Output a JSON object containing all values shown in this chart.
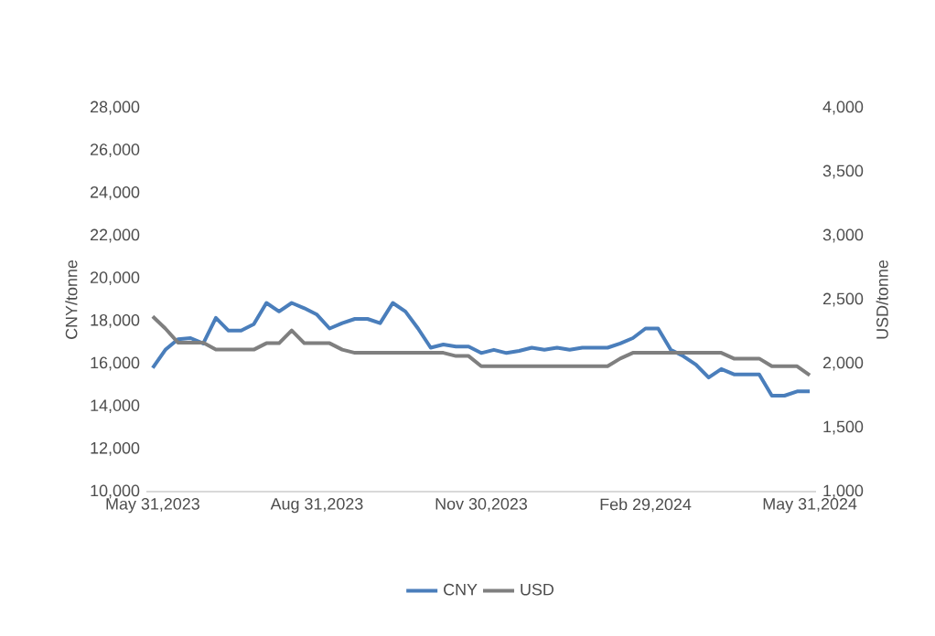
{
  "chart_data": {
    "type": "line",
    "categories": [
      "May 31,2023",
      null,
      null,
      null,
      null,
      null,
      null,
      null,
      null,
      null,
      null,
      null,
      null,
      "Aug 31,2023",
      null,
      null,
      null,
      null,
      null,
      null,
      null,
      null,
      null,
      null,
      null,
      null,
      "Nov 30,2023",
      null,
      null,
      null,
      null,
      null,
      null,
      null,
      null,
      null,
      null,
      null,
      null,
      "Feb 29,2024",
      null,
      null,
      null,
      null,
      null,
      null,
      null,
      null,
      null,
      null,
      null,
      null,
      "May 31,2024"
    ],
    "series": [
      {
        "name": "CNY",
        "color": "#4a7ebb",
        "values": [
          15800,
          16650,
          17150,
          17200,
          16950,
          18150,
          17550,
          17550,
          17850,
          18850,
          18450,
          18850,
          18600,
          18300,
          17650,
          17900,
          18100,
          18100,
          17900,
          18850,
          18450,
          17650,
          16750,
          16900,
          16800,
          16800,
          16500,
          16650,
          16500,
          16600,
          16750,
          16650,
          16750,
          16650,
          16750,
          16750,
          16750,
          16950,
          17200,
          17650,
          17650,
          16650,
          16350,
          15950,
          15350,
          15750,
          15500,
          15500,
          15500,
          14500,
          14500,
          14700,
          14700
        ]
      },
      {
        "name": "USD",
        "color": "#7f7f7f",
        "axis": "y2",
        "values": [
          2370,
          2275,
          2165,
          2165,
          2165,
          2110,
          2110,
          2110,
          2110,
          2160,
          2160,
          2260,
          2160,
          2160,
          2160,
          2110,
          2085,
          2085,
          2085,
          2085,
          2085,
          2085,
          2085,
          2085,
          2060,
          2060,
          1980,
          1980,
          1980,
          1980,
          1980,
          1980,
          1980,
          1980,
          1980,
          1980,
          1980,
          2040,
          2085,
          2085,
          2085,
          2085,
          2085,
          2085,
          2085,
          2085,
          2040,
          2040,
          2040,
          1980,
          1980,
          1980,
          1910
        ]
      }
    ],
    "ylabel": "CNY/tonne",
    "y2label": "USD/tonne",
    "ylim": [
      10000,
      28000
    ],
    "yticks": [
      {
        "value": 10000,
        "label": "10,000"
      },
      {
        "value": 12000,
        "label": "12,000"
      },
      {
        "value": 14000,
        "label": "14,000"
      },
      {
        "value": 16000,
        "label": "16,000"
      },
      {
        "value": 18000,
        "label": "18,000"
      },
      {
        "value": 20000,
        "label": "20,000"
      },
      {
        "value": 22000,
        "label": "22,000"
      },
      {
        "value": 24000,
        "label": "24,000"
      },
      {
        "value": 26000,
        "label": "26,000"
      },
      {
        "value": 28000,
        "label": "28,000"
      }
    ],
    "y2lim": [
      1000,
      4000
    ],
    "y2ticks": [
      {
        "value": 1000,
        "label": "1,000"
      },
      {
        "value": 1500,
        "label": "1,500"
      },
      {
        "value": 2000,
        "label": "2,000"
      },
      {
        "value": 2500,
        "label": "2,500"
      },
      {
        "value": 3000,
        "label": "3,000"
      },
      {
        "value": 3500,
        "label": "3,500"
      },
      {
        "value": 4000,
        "label": "4,000"
      }
    ],
    "legend": "bottom",
    "grid": false,
    "marker": "none",
    "line_style": "solid"
  }
}
